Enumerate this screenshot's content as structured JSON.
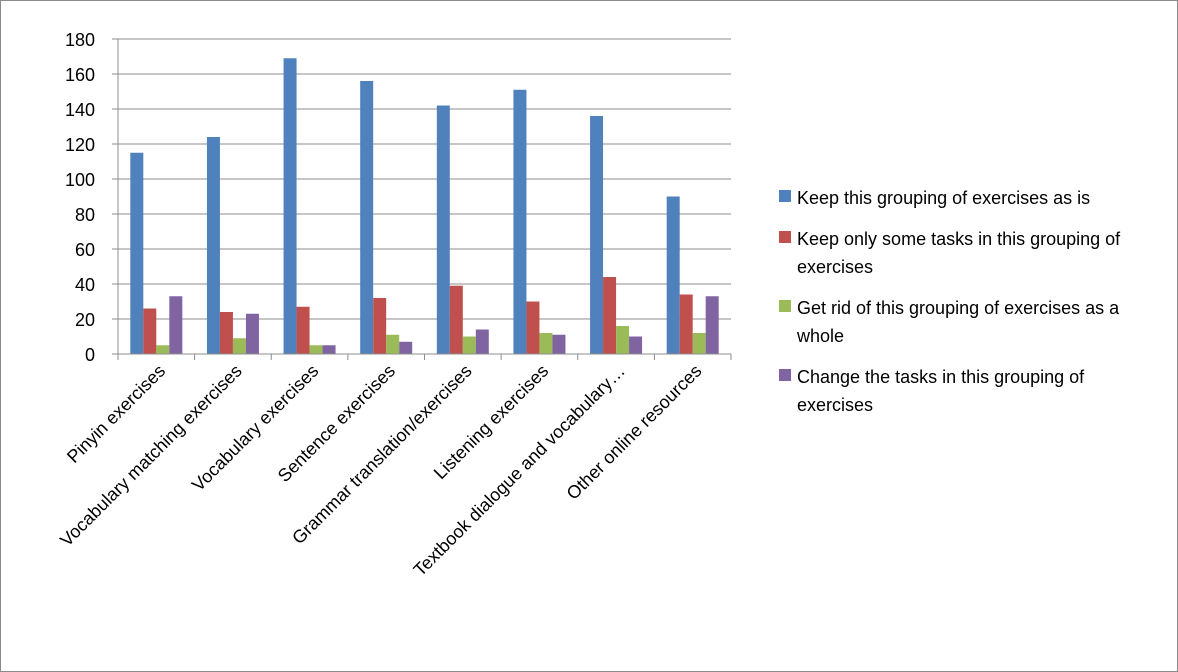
{
  "chart_data": {
    "type": "bar",
    "categories": [
      "Pinyin exercises",
      "Vocabulary matching exercises",
      "Vocabulary exercises",
      "Sentence exercises",
      "Grammar translation/exercises",
      "Listening exercises",
      "Textbook dialogue and vocabulary…",
      "Other online resources"
    ],
    "series": [
      {
        "name": "Keep this grouping of exercises as is",
        "color": "#4f81bd",
        "values": [
          115,
          124,
          169,
          156,
          142,
          151,
          136,
          90
        ]
      },
      {
        "name": "Keep only some tasks in this grouping of exercises",
        "color": "#c0504d",
        "values": [
          26,
          24,
          27,
          32,
          39,
          30,
          44,
          34
        ]
      },
      {
        "name": "Get rid of this grouping of exercises as a whole",
        "color": "#9bbb59",
        "values": [
          5,
          9,
          5,
          11,
          10,
          12,
          16,
          12
        ]
      },
      {
        "name": "Change the tasks in this grouping of exercises",
        "color": "#8064a2",
        "values": [
          33,
          23,
          5,
          7,
          14,
          11,
          10,
          33
        ]
      }
    ],
    "title": "",
    "xlabel": "",
    "ylabel": "",
    "ylim": [
      0,
      180
    ],
    "yticks": [
      0,
      20,
      40,
      60,
      80,
      100,
      120,
      140,
      160,
      180
    ],
    "grid": true,
    "legend": "right"
  }
}
